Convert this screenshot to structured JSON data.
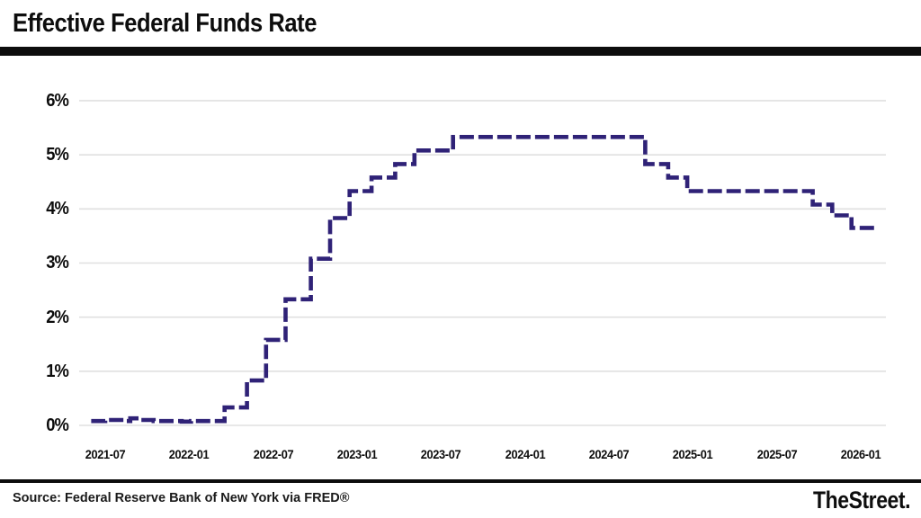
{
  "header": {
    "title": "Effective Federal Funds Rate"
  },
  "footer": {
    "source": "Source: Federal Reserve Bank of New York via FRED®",
    "brand": "TheStreet."
  },
  "chart_data": {
    "type": "line",
    "subtype": "step-after",
    "line_style": "dashed",
    "title": "Effective Federal Funds Rate",
    "xlabel": "",
    "ylabel": "",
    "ylim": [
      0,
      6
    ],
    "grid": "horizontal",
    "legend": "none",
    "colors": {
      "line": "#2f2277",
      "grid": "#e0e0e0",
      "text": "#0d0d0d",
      "rule": "#0d0d0d",
      "background": "#ffffff"
    },
    "y_ticks": [
      {
        "label": "0%",
        "value": 0
      },
      {
        "label": "1%",
        "value": 1
      },
      {
        "label": "2%",
        "value": 2
      },
      {
        "label": "3%",
        "value": 3
      },
      {
        "label": "4%",
        "value": 4
      },
      {
        "label": "5%",
        "value": 5
      },
      {
        "label": "6%",
        "value": 6
      }
    ],
    "x_ticks": [
      {
        "label": "2021-07",
        "value": "2021-07"
      },
      {
        "label": "2022-01",
        "value": "2022-01"
      },
      {
        "label": "2022-07",
        "value": "2022-07"
      },
      {
        "label": "2023-01",
        "value": "2023-01"
      },
      {
        "label": "2023-07",
        "value": "2023-07"
      },
      {
        "label": "2024-01",
        "value": "2024-01"
      },
      {
        "label": "2024-07",
        "value": "2024-07"
      },
      {
        "label": "2025-01",
        "value": "2025-01"
      },
      {
        "label": "2025-07",
        "value": "2025-07"
      },
      {
        "label": "2026-01",
        "value": "2026-01"
      }
    ],
    "series": [
      {
        "name": "Effective Federal Funds Rate",
        "points": [
          [
            "2021-06-01",
            0.08
          ],
          [
            "2021-07-01",
            0.1
          ],
          [
            "2021-08-10",
            0.08
          ],
          [
            "2021-08-25",
            0.13
          ],
          [
            "2021-09-15",
            0.1
          ],
          [
            "2021-10-15",
            0.08
          ],
          [
            "2021-12-15",
            0.07
          ],
          [
            "2022-01-05",
            0.08
          ],
          [
            "2022-03-17",
            0.33
          ],
          [
            "2022-05-05",
            0.83
          ],
          [
            "2022-06-16",
            1.58
          ],
          [
            "2022-07-28",
            2.33
          ],
          [
            "2022-09-22",
            3.08
          ],
          [
            "2022-11-03",
            3.83
          ],
          [
            "2022-12-15",
            4.33
          ],
          [
            "2023-02-02",
            4.58
          ],
          [
            "2023-03-23",
            4.83
          ],
          [
            "2023-05-04",
            5.08
          ],
          [
            "2023-07-27",
            5.33
          ],
          [
            "2024-09-19",
            4.83
          ],
          [
            "2024-11-08",
            4.58
          ],
          [
            "2024-12-19",
            4.33
          ],
          [
            "2025-09-18",
            4.08
          ],
          [
            "2025-10-30",
            3.88
          ],
          [
            "2025-12-11",
            3.65
          ],
          [
            "2026-02-01",
            3.65
          ]
        ]
      }
    ]
  }
}
